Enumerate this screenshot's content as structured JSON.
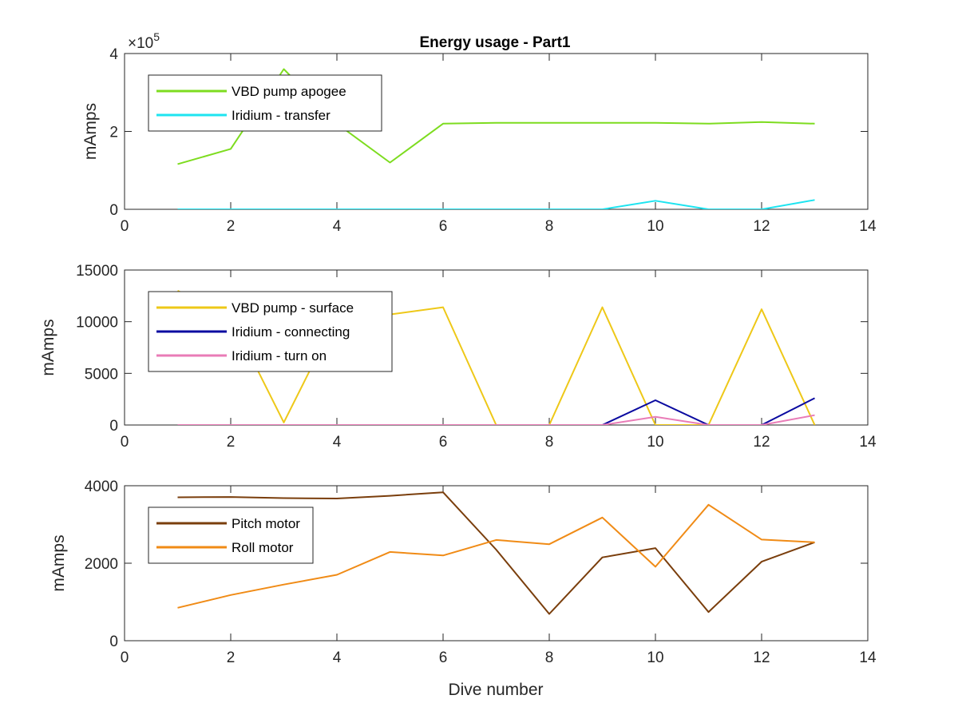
{
  "chart_data": {
    "type": "line",
    "title": "Energy usage - Part1",
    "xlabel": "Dive number",
    "panels": [
      {
        "ylabel": "mAmps",
        "exponent_label": "×10",
        "exponent_power": "5",
        "xlim": [
          0,
          14
        ],
        "ylim": [
          0,
          4
        ],
        "xticks": [
          "0",
          "2",
          "4",
          "6",
          "8",
          "10",
          "12",
          "14"
        ],
        "yticks": [
          0,
          2,
          4
        ],
        "ytick_labels": [
          "0",
          "2",
          "4"
        ],
        "legend_position": "top-left",
        "series": [
          {
            "name": "VBD pump apogee",
            "color": "#7ddc1f",
            "x": [
              1,
              2,
              3,
              4,
              5,
              6,
              7,
              8,
              9,
              10,
              11,
              12,
              13
            ],
            "y": [
              1.16,
              1.55,
              3.6,
              2.2,
              1.2,
              2.2,
              2.22,
              2.22,
              2.22,
              2.22,
              2.2,
              2.24,
              2.2
            ]
          },
          {
            "name": "Iridium - transfer",
            "color": "#1ee4f0",
            "x": [
              1,
              2,
              3,
              4,
              5,
              6,
              7,
              8,
              9,
              10,
              11,
              12,
              13
            ],
            "y": [
              0,
              0,
              0,
              0,
              0,
              0,
              0,
              0,
              0,
              0.22,
              0,
              0,
              0.24
            ]
          }
        ]
      },
      {
        "ylabel": "mAmps",
        "xlim": [
          0,
          14
        ],
        "ylim": [
          0,
          15000
        ],
        "xticks": [
          "0",
          "2",
          "4",
          "6",
          "8",
          "10",
          "12",
          "14"
        ],
        "yticks": [
          0,
          5000,
          10000,
          15000
        ],
        "ytick_labels": [
          "0",
          "5000",
          "10000",
          "15000"
        ],
        "legend_position": "top-left",
        "series": [
          {
            "name": "VBD pump - surface",
            "color": "#eec818",
            "x": [
              1,
              2,
              3,
              4,
              5,
              6,
              7,
              8,
              9,
              10,
              11,
              12,
              13
            ],
            "y": [
              13000,
              10500,
              250,
              10500,
              10700,
              11400,
              0,
              0,
              11400,
              0,
              0,
              11200,
              0
            ]
          },
          {
            "name": "Iridium - connecting",
            "color": "#0a0aa0",
            "x": [
              1,
              2,
              3,
              4,
              5,
              6,
              7,
              8,
              9,
              10,
              11,
              12,
              13
            ],
            "y": [
              0,
              0,
              0,
              0,
              0,
              0,
              0,
              0,
              0,
              2400,
              0,
              0,
              2600
            ]
          },
          {
            "name": "Iridium - turn on",
            "color": "#e97cb7",
            "x": [
              1,
              2,
              3,
              4,
              5,
              6,
              7,
              8,
              9,
              10,
              11,
              12,
              13
            ],
            "y": [
              0,
              0,
              0,
              0,
              0,
              0,
              0,
              0,
              0,
              800,
              0,
              0,
              950
            ]
          }
        ]
      },
      {
        "ylabel": "mAmps",
        "xlim": [
          0,
          14
        ],
        "ylim": [
          0,
          4000
        ],
        "xticks": [
          "0",
          "2",
          "4",
          "6",
          "8",
          "10",
          "12",
          "14"
        ],
        "yticks": [
          0,
          2000,
          4000
        ],
        "ytick_labels": [
          "0",
          "2000",
          "4000"
        ],
        "legend_position": "top-left",
        "series": [
          {
            "name": "Pitch motor",
            "color": "#7a3e0c",
            "x": [
              1,
              2,
              3,
              4,
              5,
              6,
              7,
              8,
              9,
              10,
              11,
              12,
              13
            ],
            "y": [
              3700,
              3710,
              3680,
              3670,
              3740,
              3830,
              2350,
              690,
              2150,
              2390,
              740,
              2040,
              2540
            ]
          },
          {
            "name": "Roll motor",
            "color": "#f08b16",
            "x": [
              1,
              2,
              3,
              4,
              5,
              6,
              7,
              8,
              9,
              10,
              11,
              12,
              13
            ],
            "y": [
              850,
              1180,
              1450,
              1700,
              2290,
              2200,
              2600,
              2490,
              3180,
              1910,
              3510,
              2610,
              2540
            ]
          }
        ]
      }
    ]
  }
}
